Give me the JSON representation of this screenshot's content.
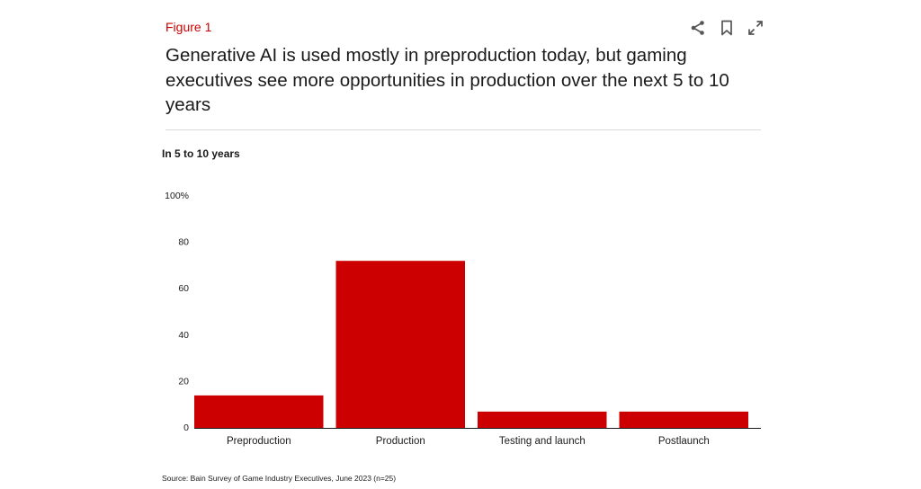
{
  "figure": {
    "label": "Figure 1",
    "title": "Generative AI is used mostly in preproduction today, but gaming executives see more opportunities in production over the next 5 to 10 years",
    "accent_color": "#cc0000"
  },
  "toolbar": {
    "share_icon": "share-icon",
    "bookmark_icon": "bookmark-icon",
    "expand_icon": "expand-icon"
  },
  "chart_data": {
    "type": "bar",
    "subtitle": "In 5 to 10 years",
    "categories": [
      "Preproduction",
      "Production",
      "Testing and launch",
      "Postlaunch"
    ],
    "values": [
      14,
      72,
      7,
      7
    ],
    "ylim": [
      0,
      100
    ],
    "yticks": [
      "0",
      "20",
      "40",
      "60",
      "80",
      "100%"
    ],
    "ytick_values": [
      0,
      20,
      40,
      60,
      80,
      100
    ],
    "bar_color": "#cc0000",
    "grid": false,
    "legend": "none",
    "xlabel": "",
    "ylabel": ""
  },
  "source": "Source: Bain Survey of Game Industry Executives, June 2023 (n=25)"
}
